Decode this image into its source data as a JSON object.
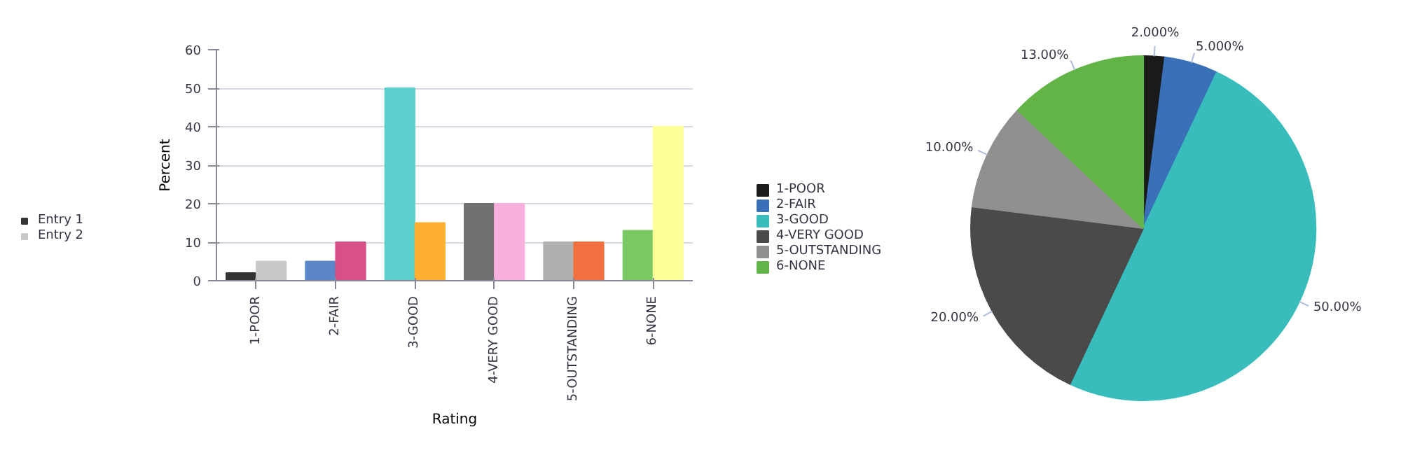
{
  "chart_data": [
    {
      "type": "bar",
      "xlabel": "Rating",
      "ylabel": "Percent",
      "categories": [
        "1-POOR",
        "2-FAIR",
        "3-GOOD",
        "4-VERY GOOD",
        "5-OUTSTANDING",
        "6-NONE"
      ],
      "series": [
        {
          "name": "Entry 1",
          "colors": [
            "#333333",
            "#5b86c8",
            "#5cd0cc",
            "#707070",
            "#b0b0b0",
            "#7cc864"
          ],
          "values": [
            2,
            5,
            50,
            20,
            10,
            13
          ]
        },
        {
          "name": "Entry 2",
          "colors": [
            "#c8c8c8",
            "#d85088",
            "#ffb030",
            "#f8b0dc",
            "#f07040",
            "#ffff99"
          ],
          "values": [
            5,
            10,
            15,
            20,
            10,
            40
          ]
        }
      ],
      "ylim": [
        0,
        60
      ],
      "yticks": [
        0,
        10,
        20,
        30,
        40,
        50,
        60
      ],
      "grid": "y",
      "legend": "left"
    },
    {
      "type": "pie",
      "categories": [
        "1-POOR",
        "2-FAIR",
        "3-GOOD",
        "4-VERY GOOD",
        "5-OUTSTANDING",
        "6-NONE"
      ],
      "values": [
        2,
        5,
        50,
        20,
        10,
        13
      ],
      "colors": [
        "#1a1a1a",
        "#3a70b8",
        "#38bcbc",
        "#4a4a4a",
        "#909090",
        "#62b446"
      ],
      "value_labels": [
        "2.000%",
        "5.000%",
        "50.00%",
        "20.00%",
        "10.00%",
        "13.00%"
      ],
      "legend": "left"
    }
  ]
}
